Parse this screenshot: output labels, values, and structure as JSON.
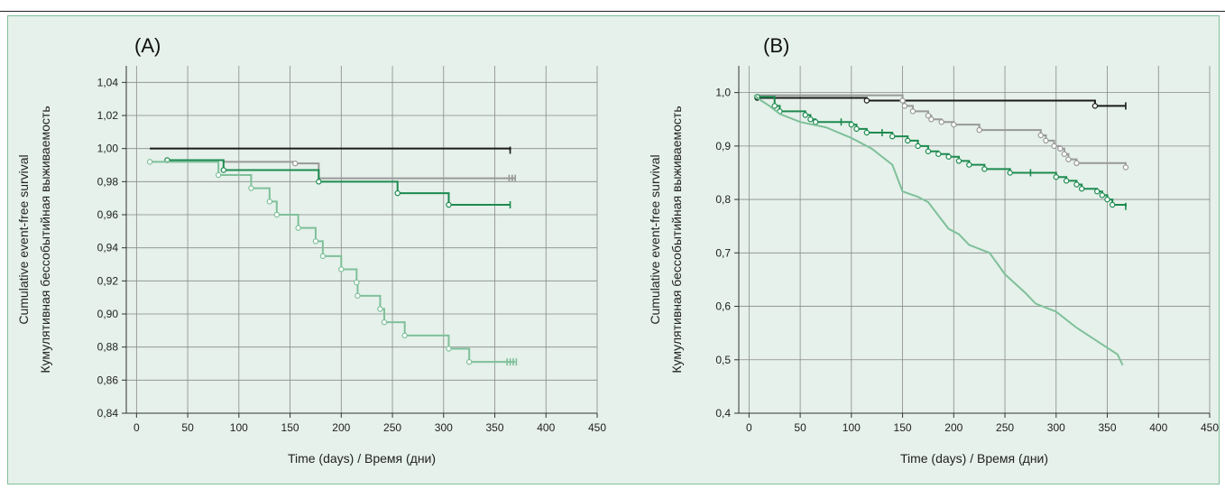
{
  "chart_data": [
    {
      "type": "line",
      "panel_label": "(A)",
      "xlabel": "Time (days) / Время (дни)",
      "ylabel_line1": "Cumulative event-free survival",
      "ylabel_line2": "Кумулятивная бессобытийная выживаемость",
      "xlim": [
        -10,
        450
      ],
      "ylim": [
        0.84,
        1.05
      ],
      "x_ticks": [
        0,
        50,
        100,
        150,
        200,
        250,
        300,
        350,
        400,
        450
      ],
      "y_ticks": [
        0.84,
        0.86,
        0.88,
        0.9,
        0.92,
        0.94,
        0.96,
        0.98,
        1.0,
        1.02,
        1.04
      ],
      "y_tick_labels": [
        "0,84",
        "0,86",
        "0,88",
        "0,90",
        "0,92",
        "0,94",
        "0,96",
        "0,98",
        "1,00",
        "1,02",
        "1,04"
      ],
      "grid": true,
      "series": [
        {
          "color": "#1a1a1a",
          "step": true,
          "points": [
            [
              13,
              1.0
            ],
            [
              365,
              0.999
            ]
          ],
          "events": [],
          "censored": [
            365
          ]
        },
        {
          "color": "#999999",
          "step": true,
          "points": [
            [
              30,
              0.993
            ],
            [
              85,
              0.992
            ],
            [
              155,
              0.991
            ],
            [
              178,
              0.982
            ],
            [
              370,
              0.982
            ]
          ],
          "events": [
            155
          ],
          "censored": [
            364,
            367,
            370
          ]
        },
        {
          "color": "#1d8a4f",
          "step": true,
          "points": [
            [
              30,
              0.993
            ],
            [
              85,
              0.987
            ],
            [
              178,
              0.98
            ],
            [
              255,
              0.973
            ],
            [
              305,
              0.966
            ],
            [
              365,
              0.966
            ]
          ],
          "events": [
            30,
            85,
            178,
            255,
            305
          ],
          "censored": [
            365
          ]
        },
        {
          "color": "#7fc09a",
          "step": true,
          "points": [
            [
              13,
              0.992
            ],
            [
              80,
              0.984
            ],
            [
              112,
              0.976
            ],
            [
              130,
              0.968
            ],
            [
              137,
              0.96
            ],
            [
              158,
              0.952
            ],
            [
              175,
              0.944
            ],
            [
              182,
              0.935
            ],
            [
              200,
              0.927
            ],
            [
              215,
              0.919
            ],
            [
              216,
              0.911
            ],
            [
              238,
              0.903
            ],
            [
              242,
              0.895
            ],
            [
              262,
              0.887
            ],
            [
              305,
              0.879
            ],
            [
              325,
              0.871
            ],
            [
              370,
              0.871
            ]
          ],
          "events": [
            13,
            80,
            112,
            130,
            137,
            158,
            175,
            182,
            200,
            215,
            216,
            238,
            242,
            262,
            305,
            325
          ],
          "censored": [
            362,
            365,
            368,
            371
          ]
        }
      ]
    },
    {
      "type": "line",
      "panel_label": "(B)",
      "xlabel": "Time (days) / Время (дни)",
      "ylabel_line1": "Cumulative event-free survival",
      "ylabel_line2": "Кумулятивная бессобытийная выживаемость",
      "xlim": [
        -10,
        450
      ],
      "ylim": [
        0.4,
        1.05
      ],
      "x_ticks": [
        0,
        50,
        100,
        150,
        200,
        250,
        300,
        350,
        400,
        450
      ],
      "y_ticks": [
        0.4,
        0.5,
        0.6,
        0.7,
        0.8,
        0.9,
        1.0
      ],
      "y_tick_labels": [
        "0,4",
        "0,5",
        "0,6",
        "0,7",
        "0,8",
        "0,9",
        "1,0"
      ],
      "grid": true,
      "series": [
        {
          "color": "#1a1a1a",
          "step": true,
          "points": [
            [
              8,
              0.99
            ],
            [
              25,
              0.99
            ],
            [
              115,
              0.985
            ],
            [
              338,
              0.975
            ],
            [
              368,
              0.975
            ]
          ],
          "events": [
            8,
            115,
            338
          ],
          "censored": [
            368
          ]
        },
        {
          "color": "#999999",
          "step": true,
          "points": [
            [
              8,
              0.995
            ],
            [
              150,
              0.985
            ],
            [
              152,
              0.975
            ],
            [
              160,
              0.965
            ],
            [
              175,
              0.957
            ],
            [
              178,
              0.95
            ],
            [
              188,
              0.945
            ],
            [
              200,
              0.94
            ],
            [
              225,
              0.93
            ],
            [
              285,
              0.92
            ],
            [
              290,
              0.91
            ],
            [
              298,
              0.9
            ],
            [
              304,
              0.895
            ],
            [
              308,
              0.885
            ],
            [
              312,
              0.875
            ],
            [
              320,
              0.868
            ],
            [
              368,
              0.86
            ]
          ],
          "events": [
            150,
            152,
            160,
            175,
            178,
            188,
            200,
            225,
            285,
            290,
            298,
            304,
            308,
            312,
            320,
            368
          ],
          "censored": []
        },
        {
          "color": "#1d8a4f",
          "step": true,
          "points": [
            [
              8,
              0.992
            ],
            [
              25,
              0.975
            ],
            [
              30,
              0.965
            ],
            [
              55,
              0.958
            ],
            [
              60,
              0.95
            ],
            [
              65,
              0.945
            ],
            [
              100,
              0.94
            ],
            [
              105,
              0.932
            ],
            [
              115,
              0.925
            ],
            [
              140,
              0.918
            ],
            [
              155,
              0.91
            ],
            [
              165,
              0.9
            ],
            [
              175,
              0.89
            ],
            [
              185,
              0.885
            ],
            [
              195,
              0.88
            ],
            [
              205,
              0.872
            ],
            [
              215,
              0.865
            ],
            [
              230,
              0.857
            ],
            [
              255,
              0.85
            ],
            [
              300,
              0.842
            ],
            [
              310,
              0.835
            ],
            [
              320,
              0.828
            ],
            [
              325,
              0.82
            ],
            [
              340,
              0.815
            ],
            [
              345,
              0.808
            ],
            [
              350,
              0.8
            ],
            [
              355,
              0.79
            ],
            [
              368,
              0.787
            ]
          ],
          "events": [
            8,
            25,
            30,
            55,
            60,
            65,
            100,
            105,
            115,
            140,
            155,
            165,
            175,
            185,
            195,
            205,
            215,
            230,
            255,
            300,
            310,
            320,
            325,
            340,
            345,
            350,
            355
          ],
          "censored": [
            90,
            130,
            275,
            368
          ]
        },
        {
          "color": "#7fc09a",
          "step": false,
          "points": [
            [
              5,
              0.995
            ],
            [
              12,
              0.985
            ],
            [
              20,
              0.975
            ],
            [
              30,
              0.96
            ],
            [
              50,
              0.945
            ],
            [
              75,
              0.935
            ],
            [
              100,
              0.915
            ],
            [
              120,
              0.895
            ],
            [
              140,
              0.865
            ],
            [
              150,
              0.815
            ],
            [
              165,
              0.805
            ],
            [
              175,
              0.795
            ],
            [
              185,
              0.77
            ],
            [
              195,
              0.745
            ],
            [
              205,
              0.735
            ],
            [
              215,
              0.715
            ],
            [
              235,
              0.7
            ],
            [
              250,
              0.66
            ],
            [
              270,
              0.625
            ],
            [
              280,
              0.605
            ],
            [
              300,
              0.59
            ],
            [
              320,
              0.56
            ],
            [
              340,
              0.535
            ],
            [
              360,
              0.51
            ],
            [
              365,
              0.49
            ]
          ],
          "events": [],
          "censored": []
        }
      ]
    }
  ]
}
